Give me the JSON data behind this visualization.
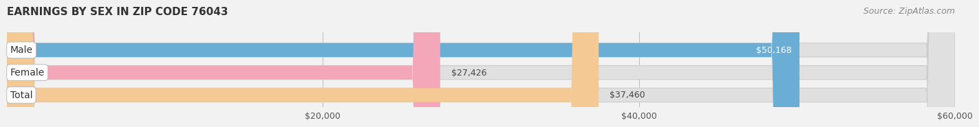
{
  "title": "EARNINGS BY SEX IN ZIP CODE 76043",
  "source": "Source: ZipAtlas.com",
  "categories": [
    "Male",
    "Female",
    "Total"
  ],
  "values": [
    50168,
    27426,
    37460
  ],
  "labels": [
    "$50,168",
    "$27,426",
    "$37,460"
  ],
  "bar_colors": [
    "#6aaed6",
    "#f4a7b9",
    "#f5c993"
  ],
  "label_text_colors": [
    "#ffffff",
    "#555555",
    "#555555"
  ],
  "xmin": 0,
  "xmax": 60000,
  "xticks": [
    20000,
    40000,
    60000
  ],
  "xticklabels": [
    "$20,000",
    "$40,000",
    "$60,000"
  ],
  "background_color": "#f2f2f2",
  "bar_bg_color": "#e0e0e0",
  "title_fontsize": 11,
  "source_fontsize": 9,
  "label_fontsize": 9,
  "tick_fontsize": 9,
  "cat_fontsize": 10
}
